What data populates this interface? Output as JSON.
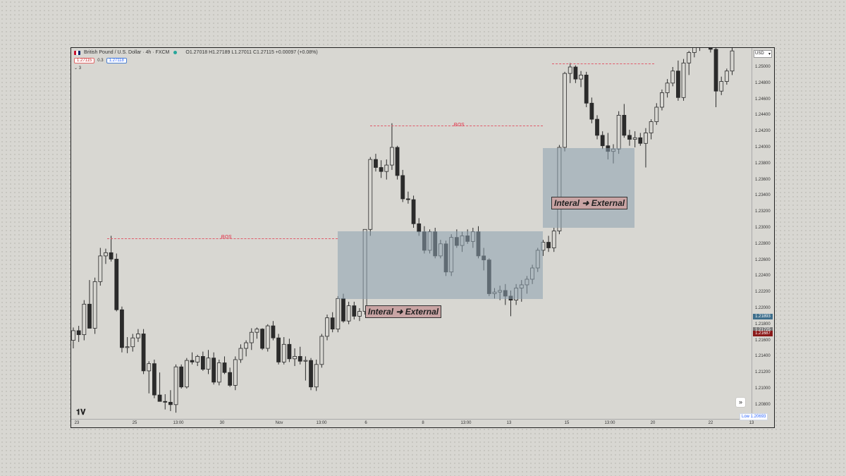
{
  "symbol": {
    "title": "British Pound / U.S. Dollar · 4h · FXCM",
    "ohlc": "O1.27018 H1.27189 L1.27011 C1.27115 +0.00097 (+0.08%)",
    "sell_price": "1.27115",
    "spread": "0.3",
    "buy_price": "1.27118",
    "indicators_count": "3"
  },
  "currency": "USD",
  "price_ticks": [
    "1.25000",
    "1.24800",
    "1.24600",
    "1.24400",
    "1.24200",
    "1.24000",
    "1.23800",
    "1.23600",
    "1.23400",
    "1.23200",
    "1.23000",
    "1.22800",
    "1.22600",
    "1.22400",
    "1.22200",
    "1.22000",
    "1.21800",
    "1.21600",
    "1.21400",
    "1.21200",
    "1.21000",
    "1.20800"
  ],
  "price_tags": [
    {
      "value": "1.21893",
      "color": "#3d6e8c"
    },
    {
      "value": "1.21725",
      "color": "#7a7a7a"
    },
    {
      "value": "1.21687",
      "color": "#8b1a1a"
    }
  ],
  "time_ticks": [
    "23",
    "25",
    "13:00",
    "30",
    "Nov",
    "13:00",
    "6",
    "8",
    "13:00",
    "13",
    "15",
    "13:00",
    "20",
    "22",
    "13"
  ],
  "low_label": "Low   1.20693",
  "annotations": {
    "bos_1": "BOS",
    "bos_2": "BOS",
    "zone_1_label": "Interal ➜ External",
    "zone_2_label": "Interal ➜ External"
  },
  "icons": {
    "flag": "uk-us-flag-icon",
    "status": "market-open-dot-icon",
    "scroll": "scroll-to-realtime-icon",
    "settings": "gear-icon",
    "logo": "tradingview-logo"
  },
  "colors": {
    "bos": "#e05a6a",
    "zone": "#8ca0af",
    "label_bg": "#c9a4a4",
    "candle_up": "#d8d7d2",
    "candle_down": "#2b2b2b"
  },
  "chart_data": {
    "type": "candlestick",
    "ylim": [
      1.2064,
      1.2528
    ],
    "candles": [
      [
        1.216,
        1.2176,
        1.215,
        1.2172
      ],
      [
        1.2172,
        1.2178,
        1.2158,
        1.2167
      ],
      [
        1.2167,
        1.221,
        1.216,
        1.2205
      ],
      [
        1.2205,
        1.2235,
        1.2175,
        1.2175
      ],
      [
        1.2175,
        1.2238,
        1.2168,
        1.2233
      ],
      [
        1.2233,
        1.2275,
        1.2228,
        1.2265
      ],
      [
        1.2265,
        1.2274,
        1.2255,
        1.2269
      ],
      [
        1.2269,
        1.229,
        1.2258,
        1.2261
      ],
      [
        1.2261,
        1.2268,
        1.2196,
        1.2198
      ],
      [
        1.2198,
        1.2202,
        1.2145,
        1.2151
      ],
      [
        1.2151,
        1.2164,
        1.2144,
        1.2152
      ],
      [
        1.2152,
        1.2168,
        1.2146,
        1.2163
      ],
      [
        1.2163,
        1.2174,
        1.2158,
        1.2168
      ],
      [
        1.2168,
        1.2174,
        1.2118,
        1.2122
      ],
      [
        1.2122,
        1.2134,
        1.2094,
        1.2131
      ],
      [
        1.2131,
        1.2136,
        1.2088,
        1.2092
      ],
      [
        1.2092,
        1.212,
        1.2084,
        1.2084
      ],
      [
        1.2084,
        1.2093,
        1.2074,
        1.2083
      ],
      [
        1.2083,
        1.2098,
        1.2072,
        1.208
      ],
      [
        1.208,
        1.213,
        1.207,
        1.2127
      ],
      [
        1.2127,
        1.213,
        1.21,
        1.2102
      ],
      [
        1.2102,
        1.2138,
        1.21,
        1.2135
      ],
      [
        1.2135,
        1.2145,
        1.213,
        1.2133
      ],
      [
        1.2133,
        1.2142,
        1.2128,
        1.214
      ],
      [
        1.214,
        1.2146,
        1.2122,
        1.2124
      ],
      [
        1.2124,
        1.2148,
        1.2118,
        1.2138
      ],
      [
        1.2138,
        1.2145,
        1.2105,
        1.2108
      ],
      [
        1.2108,
        1.2136,
        1.2104,
        1.2132
      ],
      [
        1.2132,
        1.214,
        1.2118,
        1.212
      ],
      [
        1.212,
        1.2126,
        1.2102,
        1.2104
      ],
      [
        1.2104,
        1.214,
        1.2098,
        1.2136
      ],
      [
        1.2136,
        1.2155,
        1.2132,
        1.215
      ],
      [
        1.215,
        1.216,
        1.214,
        1.2157
      ],
      [
        1.2157,
        1.2175,
        1.2148,
        1.217
      ],
      [
        1.217,
        1.2176,
        1.2162,
        1.2174
      ],
      [
        1.2174,
        1.2175,
        1.2148,
        1.215
      ],
      [
        1.215,
        1.218,
        1.2146,
        1.2178
      ],
      [
        1.2178,
        1.2184,
        1.216,
        1.2163
      ],
      [
        1.2163,
        1.2168,
        1.213,
        1.2133
      ],
      [
        1.2133,
        1.2164,
        1.213,
        1.2155
      ],
      [
        1.2155,
        1.2162,
        1.2133,
        1.2137
      ],
      [
        1.2137,
        1.215,
        1.2128,
        1.214
      ],
      [
        1.214,
        1.2152,
        1.213,
        1.2134
      ],
      [
        1.2134,
        1.214,
        1.211,
        1.2135
      ],
      [
        1.2135,
        1.2138,
        1.2098,
        1.2102
      ],
      [
        1.2102,
        1.2136,
        1.2097,
        1.213
      ],
      [
        1.213,
        1.2168,
        1.2126,
        1.2165
      ],
      [
        1.2165,
        1.2192,
        1.216,
        1.2188
      ],
      [
        1.2188,
        1.2195,
        1.217,
        1.2174
      ],
      [
        1.2174,
        1.2215,
        1.217,
        1.2212
      ],
      [
        1.2212,
        1.2218,
        1.2182,
        1.2184
      ],
      [
        1.2184,
        1.2208,
        1.218,
        1.2203
      ],
      [
        1.2203,
        1.2208,
        1.2186,
        1.219
      ],
      [
        1.219,
        1.22,
        1.2184,
        1.2196
      ],
      [
        1.2196,
        1.2298,
        1.2192,
        1.2298
      ],
      [
        1.2298,
        1.2388,
        1.229,
        1.2385
      ],
      [
        1.2385,
        1.2392,
        1.237,
        1.2375
      ],
      [
        1.2375,
        1.2384,
        1.2362,
        1.237
      ],
      [
        1.237,
        1.2385,
        1.236,
        1.2378
      ],
      [
        1.2378,
        1.243,
        1.2372,
        1.24
      ],
      [
        1.24,
        1.2402,
        1.236,
        1.2365
      ],
      [
        1.2365,
        1.2372,
        1.2332,
        1.2336
      ],
      [
        1.2336,
        1.2345,
        1.233,
        1.2335
      ],
      [
        1.2335,
        1.234,
        1.23,
        1.2305
      ],
      [
        1.2305,
        1.2312,
        1.229,
        1.2295
      ],
      [
        1.2295,
        1.2302,
        1.2268,
        1.2272
      ],
      [
        1.2272,
        1.2298,
        1.2268,
        1.2295
      ],
      [
        1.2295,
        1.23,
        1.2262,
        1.2265
      ],
      [
        1.2265,
        1.2285,
        1.2262,
        1.228
      ],
      [
        1.228,
        1.2284,
        1.224,
        1.2245
      ],
      [
        1.2245,
        1.2292,
        1.224,
        1.2288
      ],
      [
        1.2288,
        1.2298,
        1.2275,
        1.2278
      ],
      [
        1.2278,
        1.2295,
        1.227,
        1.229
      ],
      [
        1.229,
        1.2298,
        1.228,
        1.2283
      ],
      [
        1.2283,
        1.23,
        1.2275,
        1.2295
      ],
      [
        1.2295,
        1.2302,
        1.2262,
        1.2265
      ],
      [
        1.2265,
        1.2275,
        1.2247,
        1.226
      ],
      [
        1.226,
        1.2262,
        1.2215,
        1.2218
      ],
      [
        1.2218,
        1.2225,
        1.2212,
        1.222
      ],
      [
        1.222,
        1.2228,
        1.221,
        1.2222
      ],
      [
        1.2222,
        1.223,
        1.2204,
        1.2215
      ],
      [
        1.2215,
        1.2222,
        1.219,
        1.221
      ],
      [
        1.221,
        1.223,
        1.2204,
        1.2225
      ],
      [
        1.2225,
        1.2235,
        1.2208,
        1.2229
      ],
      [
        1.2229,
        1.224,
        1.2218,
        1.2236
      ],
      [
        1.2236,
        1.2254,
        1.223,
        1.225
      ],
      [
        1.225,
        1.2275,
        1.2245,
        1.2272
      ],
      [
        1.2272,
        1.2285,
        1.2265,
        1.2282
      ],
      [
        1.2282,
        1.229,
        1.227,
        1.2275
      ],
      [
        1.2275,
        1.23,
        1.227,
        1.2296
      ],
      [
        1.2296,
        1.2403,
        1.2292,
        1.24
      ],
      [
        1.24,
        1.2494,
        1.2395,
        1.2492
      ],
      [
        1.2492,
        1.2505,
        1.248,
        1.25
      ],
      [
        1.25,
        1.2502,
        1.248,
        1.2485
      ],
      [
        1.2485,
        1.2495,
        1.2475,
        1.249
      ],
      [
        1.249,
        1.2494,
        1.245,
        1.2455
      ],
      [
        1.2455,
        1.2462,
        1.243,
        1.2435
      ],
      [
        1.2435,
        1.244,
        1.241,
        1.2415
      ],
      [
        1.2415,
        1.242,
        1.2398,
        1.2402
      ],
      [
        1.2402,
        1.2418,
        1.2385,
        1.2395
      ],
      [
        1.2395,
        1.2404,
        1.238,
        1.2398
      ],
      [
        1.2398,
        1.2445,
        1.2392,
        1.244
      ],
      [
        1.244,
        1.2454,
        1.2412,
        1.2415
      ],
      [
        1.2415,
        1.2422,
        1.2402,
        1.241
      ],
      [
        1.241,
        1.242,
        1.24,
        1.2412
      ],
      [
        1.2412,
        1.2418,
        1.2402,
        1.2405
      ],
      [
        1.2405,
        1.2424,
        1.2375,
        1.2418
      ],
      [
        1.2418,
        1.2435,
        1.241,
        1.2432
      ],
      [
        1.2432,
        1.2455,
        1.2428,
        1.245
      ],
      [
        1.245,
        1.2472,
        1.2446,
        1.2468
      ],
      [
        1.2468,
        1.2485,
        1.2462,
        1.248
      ],
      [
        1.248,
        1.25,
        1.2476,
        1.2495
      ],
      [
        1.2495,
        1.2508,
        1.2458,
        1.2462
      ],
      [
        1.2462,
        1.251,
        1.2458,
        1.2505
      ],
      [
        1.2505,
        1.252,
        1.249,
        1.2518
      ],
      [
        1.2518,
        1.253,
        1.2512,
        1.2528
      ],
      [
        1.2528,
        1.2535,
        1.252,
        1.2532
      ],
      [
        1.2532,
        1.2545,
        1.2525,
        1.254
      ],
      [
        1.254,
        1.2545,
        1.2518,
        1.2522
      ],
      [
        1.2522,
        1.2528,
        1.245,
        1.247
      ],
      [
        1.247,
        1.2488,
        1.2465,
        1.2482
      ],
      [
        1.2482,
        1.2498,
        1.2478,
        1.2495
      ],
      [
        1.2495,
        1.2525,
        1.249,
        1.252
      ]
    ],
    "zones": [
      {
        "label": "Interal ➜ External",
        "from": 1.2298,
        "to": 1.2214
      },
      {
        "label": "Interal ➜ External",
        "from": 1.24,
        "to": 1.2305
      }
    ],
    "bos_levels": [
      1.2291,
      1.2428,
      1.2504
    ]
  }
}
